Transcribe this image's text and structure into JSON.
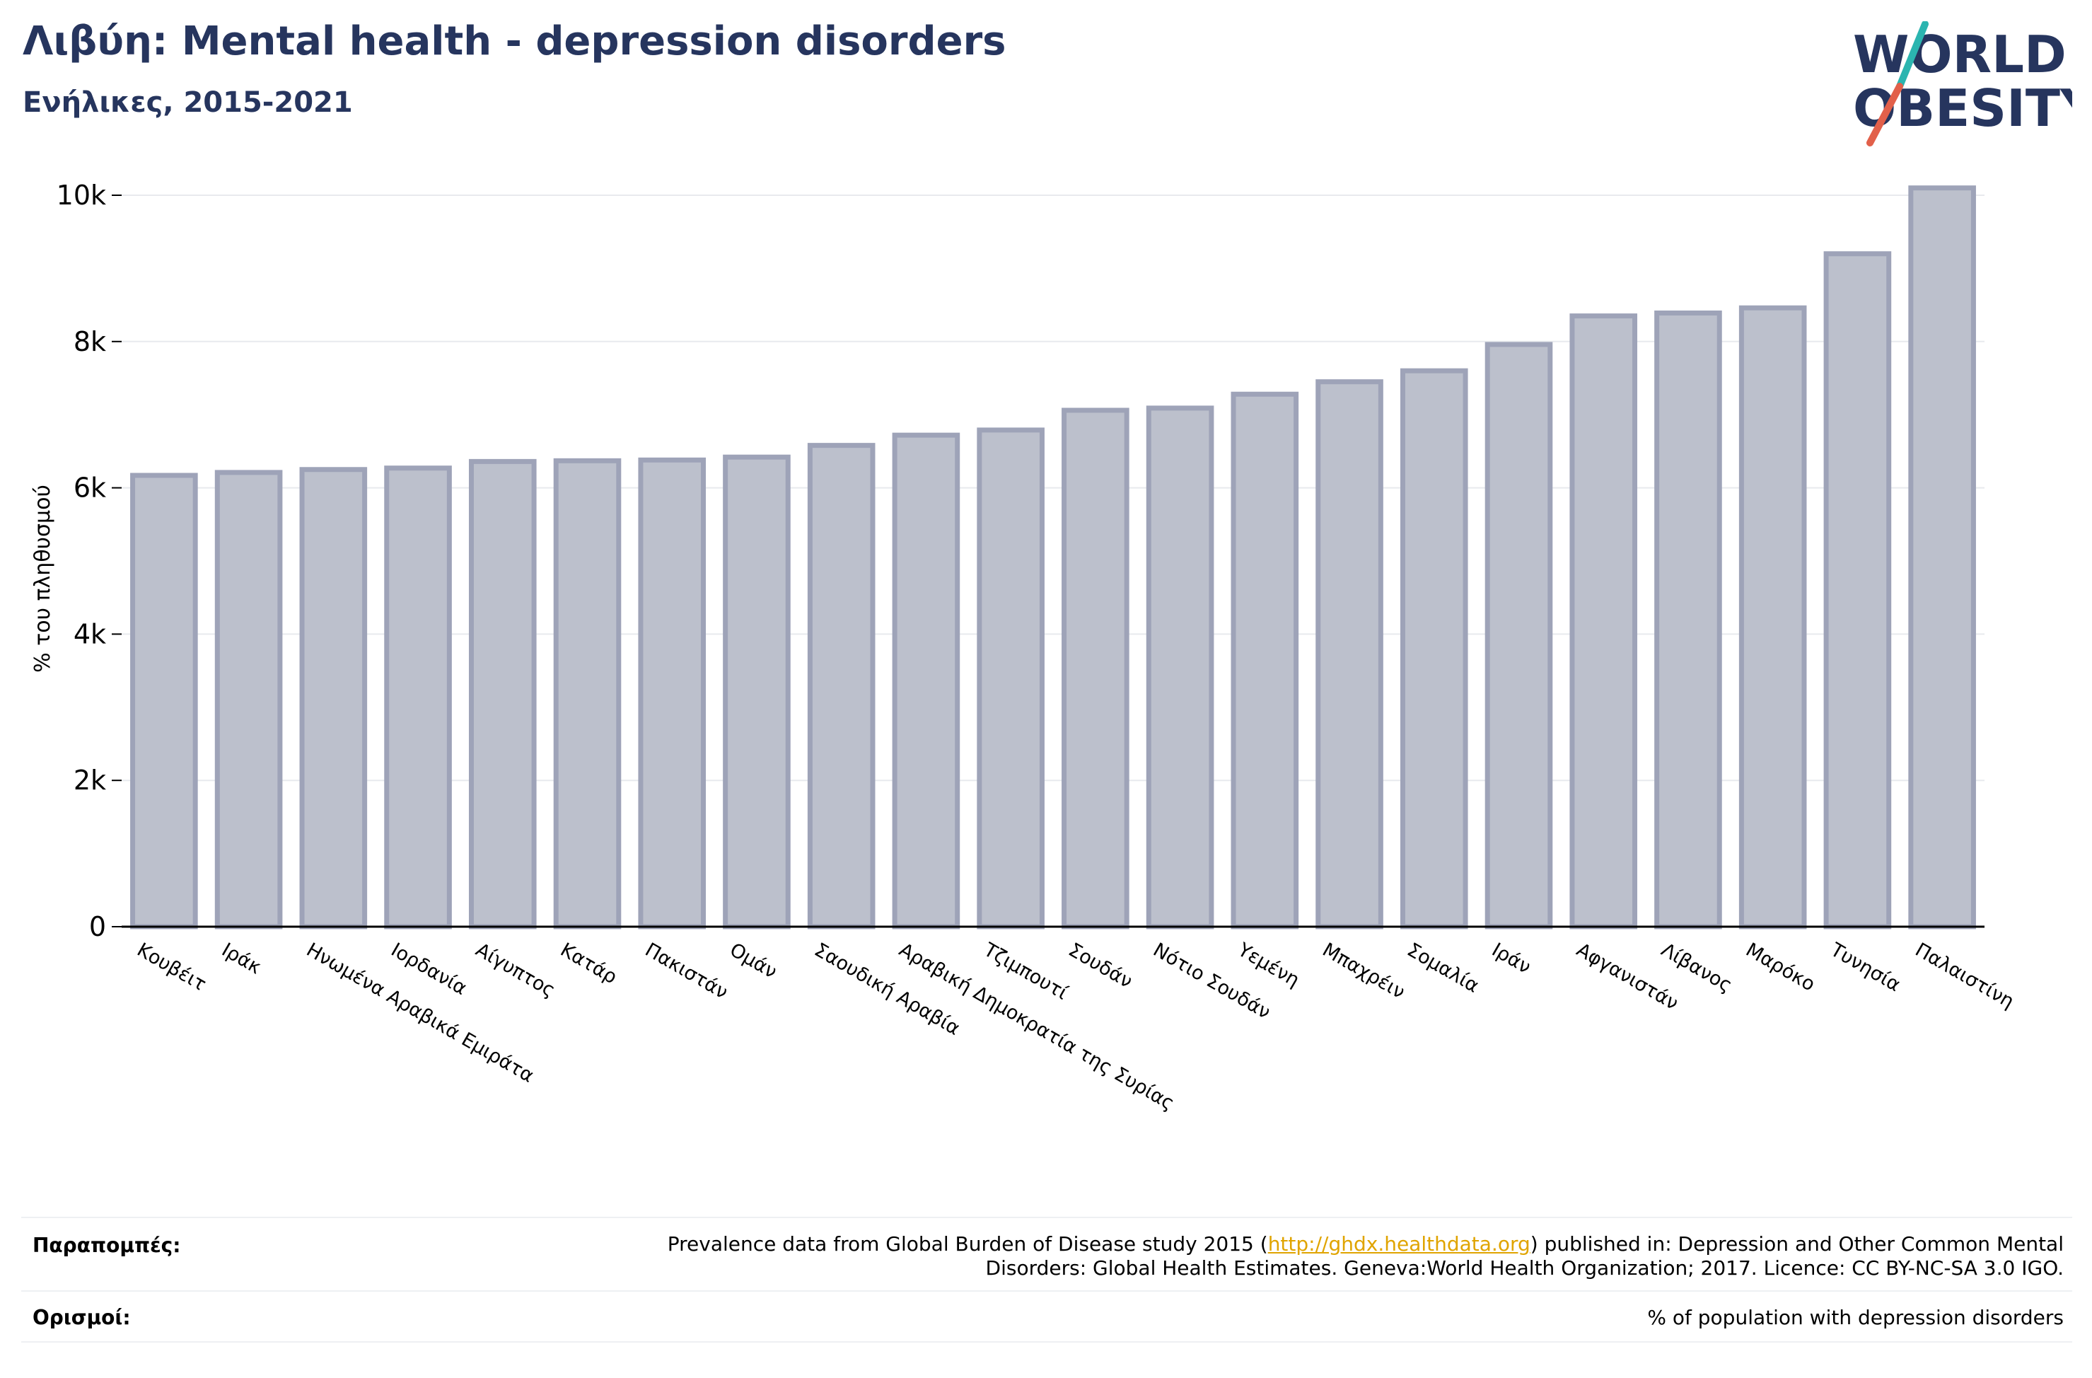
{
  "header": {
    "title": "Λιβύη: Mental health - depression disorders",
    "subtitle": "Ενήλικες, 2015-2021"
  },
  "logo": {
    "line1": "WORLD",
    "line2": "OBESITY",
    "text_color": "#26355e",
    "slash_color_top": "#2bb5b0",
    "slash_color_bottom": "#e2604a"
  },
  "chart_data": {
    "type": "bar",
    "ylabel": "% του πληθυσμού",
    "xlabel": "",
    "ylim": [
      0,
      10000
    ],
    "yticks": [
      0,
      2000,
      4000,
      6000,
      8000,
      10000
    ],
    "ytick_labels": [
      "0",
      "2k",
      "4k",
      "6k",
      "8k",
      "10k"
    ],
    "grid": true,
    "bar_fill": "#bcc0cc",
    "bar_stroke": "#9ea3b8",
    "categories": [
      "Κουβέιτ",
      "Ιράκ",
      "Ηνωμένα Αραβικά Εμιράτα",
      "Ιορδανία",
      "Αίγυπτος",
      "Κατάρ",
      "Πακιστάν",
      "Ομάν",
      "Σαουδική Αραβία",
      "Αραβική Δημοκρατία της Συρίας",
      "Τζιμπουτί",
      "Σουδάν",
      "Νότιο Σουδάν",
      "Υεμένη",
      "Μπαχρέιν",
      "Σομαλία",
      "Ιράν",
      "Αφγανιστάν",
      "Λίβανος",
      "Μαρόκο",
      "Τυνησία",
      "Παλαιστίνη"
    ],
    "values": [
      6170,
      6210,
      6250,
      6270,
      6360,
      6370,
      6380,
      6420,
      6580,
      6720,
      6790,
      7060,
      7090,
      7280,
      7450,
      7600,
      7960,
      8350,
      8390,
      8460,
      9200,
      10100
    ]
  },
  "footer": {
    "references_label": "Παραπομπές:",
    "references_text_before": "Prevalence data from Global Burden of Disease study 2015 (",
    "references_link": "http://ghdx.healthdata.org",
    "references_text_after": ") published in: Depression and Other Common Mental",
    "references_text_line2": "Disorders: Global Health Estimates. Geneva:World Health Organization; 2017. Licence: CC BY-NC-SA 3.0 IGO.",
    "definitions_label": "Ορισμοί:",
    "definitions_text": "% of population with depression disorders"
  }
}
